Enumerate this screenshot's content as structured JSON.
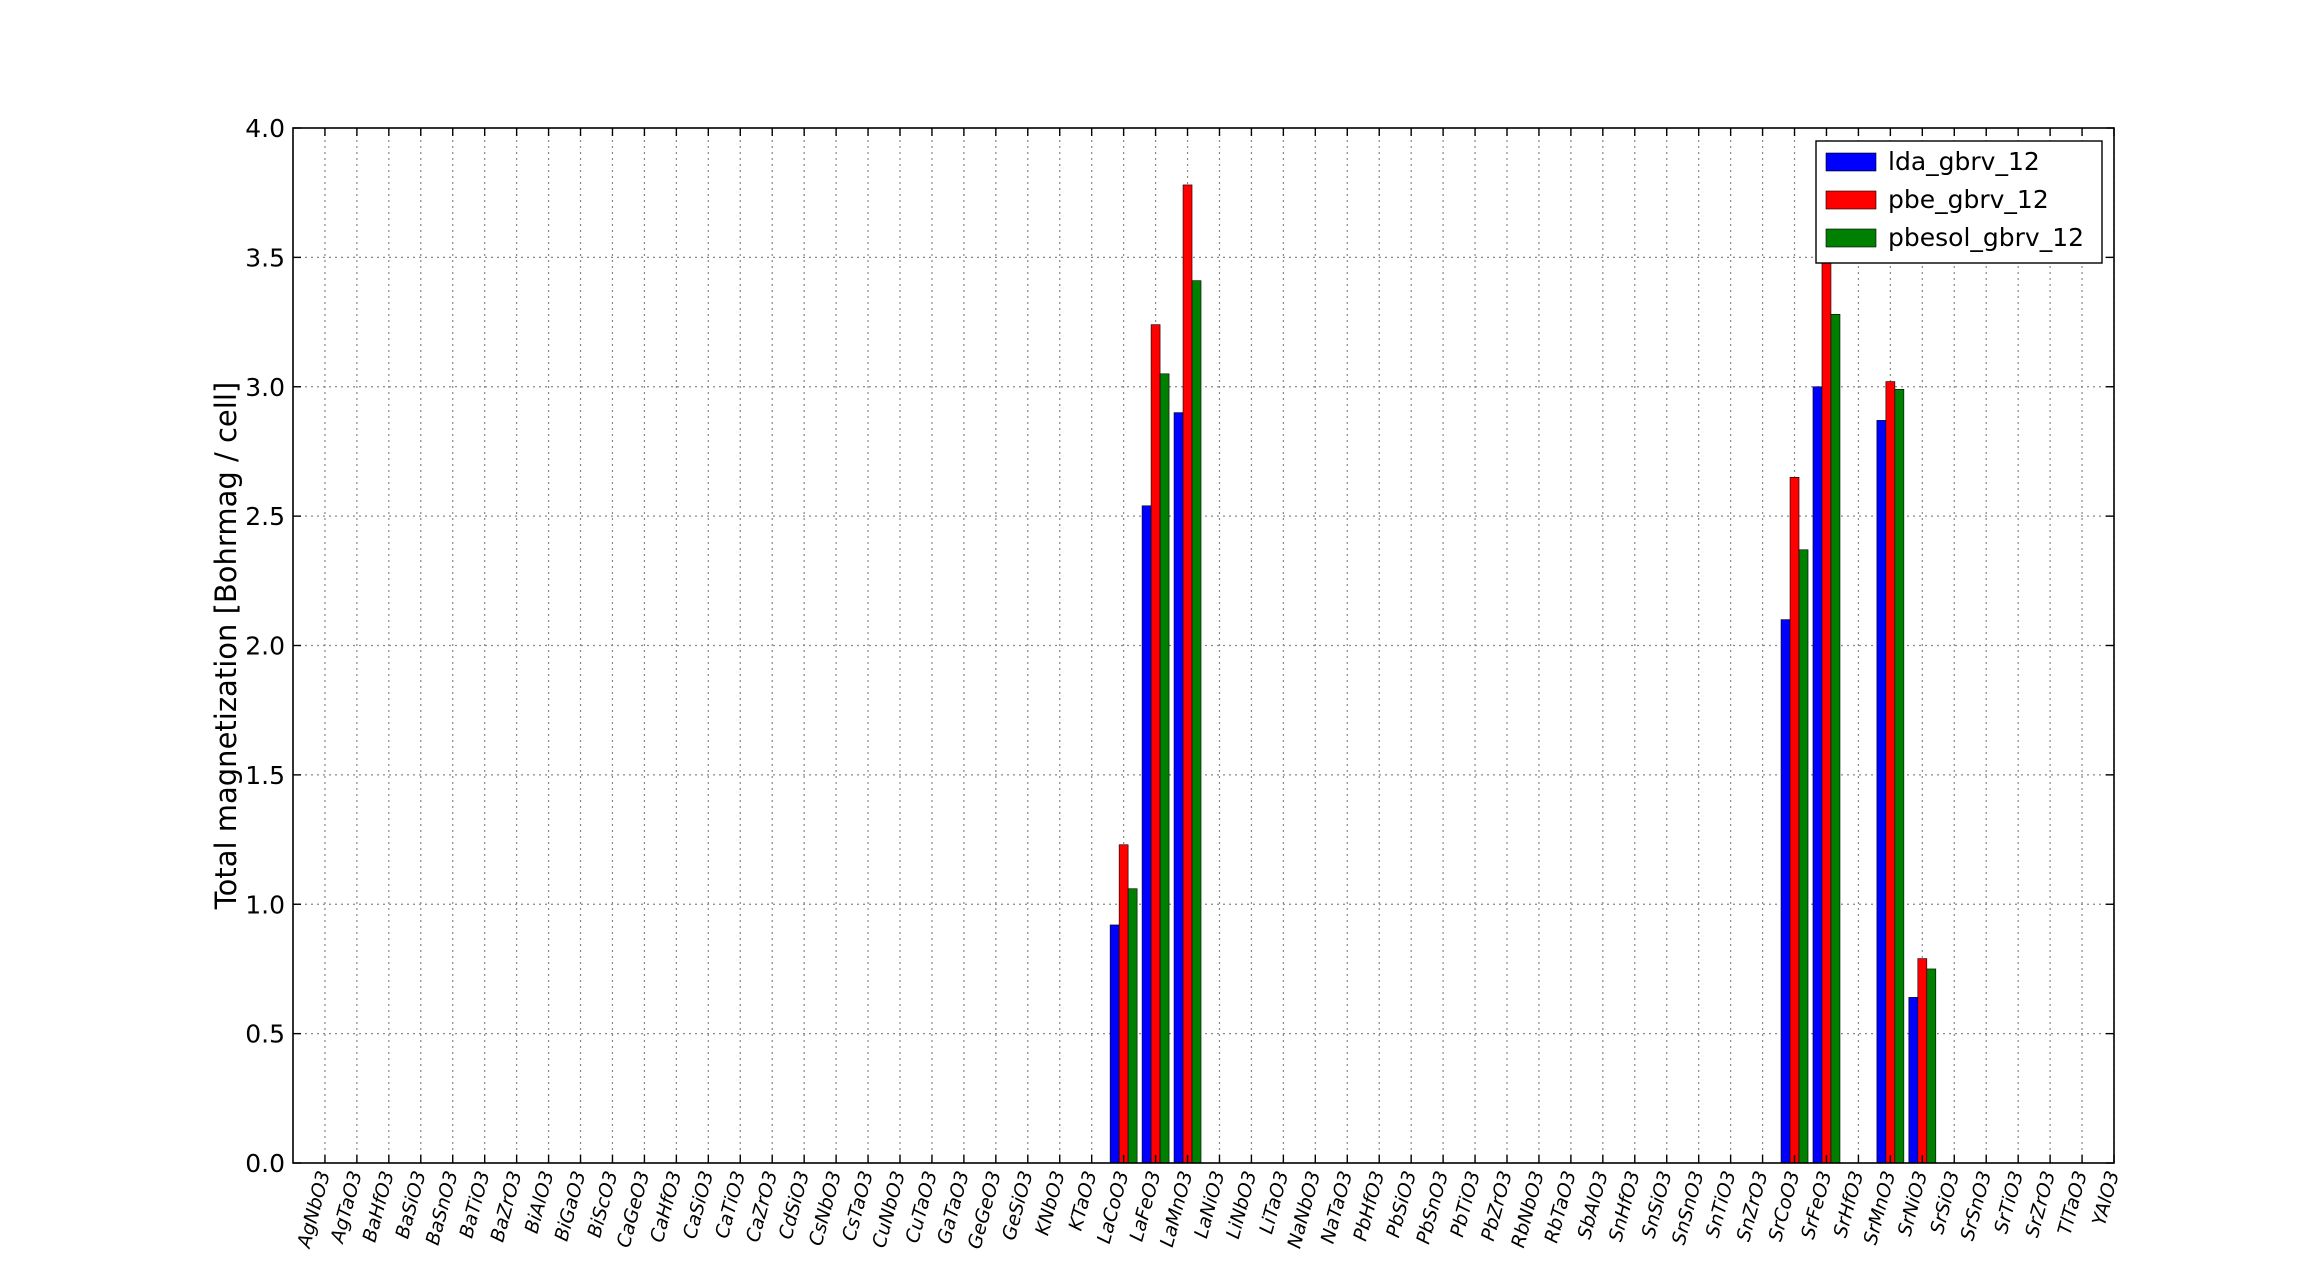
{
  "chart_data": {
    "type": "bar",
    "title": "",
    "xlabel": "",
    "ylabel": "Total magnetization [Bohrmag / cell]",
    "ylim": [
      0.0,
      4.0
    ],
    "yticks": [
      "0.0",
      "0.5",
      "1.0",
      "1.5",
      "2.0",
      "2.5",
      "3.0",
      "3.5",
      "4.0"
    ],
    "grid": true,
    "legend_position": "top-right",
    "categories": [
      "AgNbO3",
      "AgTaO3",
      "BaHfO3",
      "BaSiO3",
      "BaSnO3",
      "BaTiO3",
      "BaZrO3",
      "BiAlO3",
      "BiGaO3",
      "BiScO3",
      "CaGeO3",
      "CaHfO3",
      "CaSiO3",
      "CaTiO3",
      "CaZrO3",
      "CdSiO3",
      "CsNbO3",
      "CsTaO3",
      "CuNbO3",
      "CuTaO3",
      "GaTaO3",
      "GeGeO3",
      "GeSiO3",
      "KNbO3",
      "KTaO3",
      "LaCoO3",
      "LaFeO3",
      "LaMnO3",
      "LaNiO3",
      "LiNbO3",
      "LiTaO3",
      "NaNbO3",
      "NaTaO3",
      "PbHfO3",
      "PbSiO3",
      "PbSnO3",
      "PbTiO3",
      "PbZrO3",
      "RbNbO3",
      "RbTaO3",
      "SbAlO3",
      "SnHfO3",
      "SnSiO3",
      "SnSnO3",
      "SnTiO3",
      "SnZrO3",
      "SrCoO3",
      "SrFeO3",
      "SrHfO3",
      "SrMnO3",
      "SrNiO3",
      "SrSiO3",
      "SrSnO3",
      "SrTiO3",
      "SrZrO3",
      "TlTaO3",
      "YAlO3"
    ],
    "series": [
      {
        "name": "lda_gbrv_12",
        "color": "#0000ff",
        "values": [
          0,
          0,
          0,
          0,
          0,
          0,
          0,
          0,
          0,
          0,
          0,
          0,
          0,
          0,
          0,
          0,
          0,
          0,
          0,
          0,
          0,
          0,
          0,
          0,
          0,
          0.92,
          2.54,
          2.9,
          0,
          0,
          0,
          0,
          0,
          0,
          0,
          0,
          0,
          0,
          0,
          0,
          0,
          0,
          0,
          0,
          0,
          0,
          2.1,
          3.0,
          0,
          2.87,
          0.64,
          0,
          0,
          0,
          0,
          0,
          0
        ]
      },
      {
        "name": "pbe_gbrv_12",
        "color": "#ff0000",
        "values": [
          0,
          0,
          0,
          0,
          0,
          0,
          0,
          0,
          0,
          0,
          0,
          0,
          0,
          0,
          0,
          0,
          0,
          0,
          0,
          0,
          0,
          0,
          0,
          0,
          0,
          1.23,
          3.24,
          3.78,
          0,
          0,
          0,
          0,
          0,
          0,
          0,
          0,
          0,
          0,
          0,
          0,
          0,
          0,
          0,
          0,
          0,
          0,
          2.65,
          3.53,
          0,
          3.02,
          0.79,
          0,
          0,
          0,
          0,
          0,
          0
        ]
      },
      {
        "name": "pbesol_gbrv_12",
        "color": "#008000",
        "values": [
          0,
          0,
          0,
          0,
          0,
          0,
          0,
          0,
          0,
          0,
          0,
          0,
          0,
          0,
          0,
          0,
          0,
          0,
          0,
          0,
          0,
          0,
          0,
          0,
          0,
          1.06,
          3.05,
          3.41,
          0,
          0,
          0,
          0,
          0,
          0,
          0,
          0,
          0,
          0,
          0,
          0,
          0,
          0,
          0,
          0,
          0,
          0,
          2.37,
          3.28,
          0,
          2.99,
          0.75,
          0,
          0,
          0,
          0,
          0,
          0
        ]
      }
    ]
  }
}
